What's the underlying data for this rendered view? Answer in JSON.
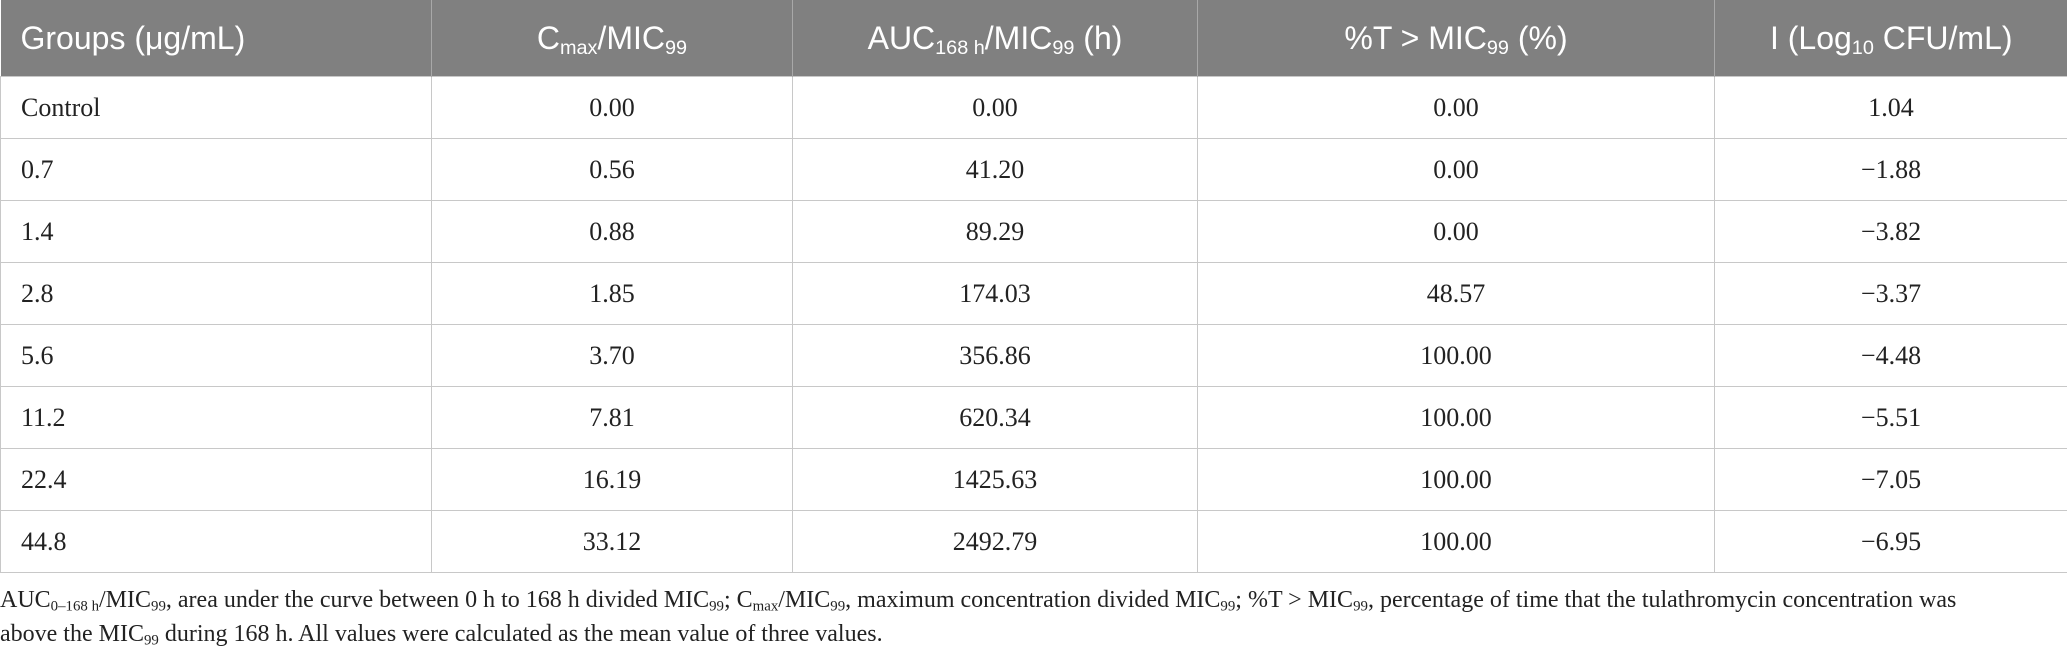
{
  "table": {
    "header": [
      [
        {
          "text": "Groups (μg/mL)"
        }
      ],
      [
        {
          "text": "C"
        },
        {
          "sub": "max"
        },
        {
          "text": "/MIC"
        },
        {
          "sub": "99"
        }
      ],
      [
        {
          "text": "AUC"
        },
        {
          "sub": "168 h"
        },
        {
          "text": "/MIC"
        },
        {
          "sub": "99"
        },
        {
          "text": " (h)"
        }
      ],
      [
        {
          "text": "%T > MIC"
        },
        {
          "sub": "99"
        },
        {
          "text": " (%)"
        }
      ],
      [
        {
          "text": "I (Log"
        },
        {
          "sub": "10"
        },
        {
          "text": " CFU/mL)"
        }
      ]
    ],
    "rows": [
      [
        "Control",
        "0.00",
        "0.00",
        "0.00",
        "1.04"
      ],
      [
        "0.7",
        "0.56",
        "41.20",
        "0.00",
        "−1.88"
      ],
      [
        "1.4",
        "0.88",
        "89.29",
        "0.00",
        "−3.82"
      ],
      [
        "2.8",
        "1.85",
        "174.03",
        "48.57",
        "−3.37"
      ],
      [
        "5.6",
        "3.70",
        "356.86",
        "100.00",
        "−4.48"
      ],
      [
        "11.2",
        "7.81",
        "620.34",
        "100.00",
        "−5.51"
      ],
      [
        "22.4",
        "16.19",
        "1425.63",
        "100.00",
        "−7.05"
      ],
      [
        "44.8",
        "33.12",
        "2492.79",
        "100.00",
        "−6.95"
      ]
    ]
  },
  "footnote": [
    {
      "text": "AUC"
    },
    {
      "sub": "0–168 h"
    },
    {
      "text": "/MIC"
    },
    {
      "sub": "99"
    },
    {
      "text": ", area under the curve between 0 h to 168 h divided MIC"
    },
    {
      "sub": "99"
    },
    {
      "text": "; C"
    },
    {
      "sub": "max"
    },
    {
      "text": "/MIC"
    },
    {
      "sub": "99"
    },
    {
      "text": ", maximum concentration divided MIC"
    },
    {
      "sub": "99"
    },
    {
      "text": "; %T > MIC"
    },
    {
      "sub": "99"
    },
    {
      "text": ", percentage of time that the tulathromycin concentration was above the MIC"
    },
    {
      "sub": "99"
    },
    {
      "text": " during 168 h. All values were calculated as the mean value of three values."
    }
  ]
}
